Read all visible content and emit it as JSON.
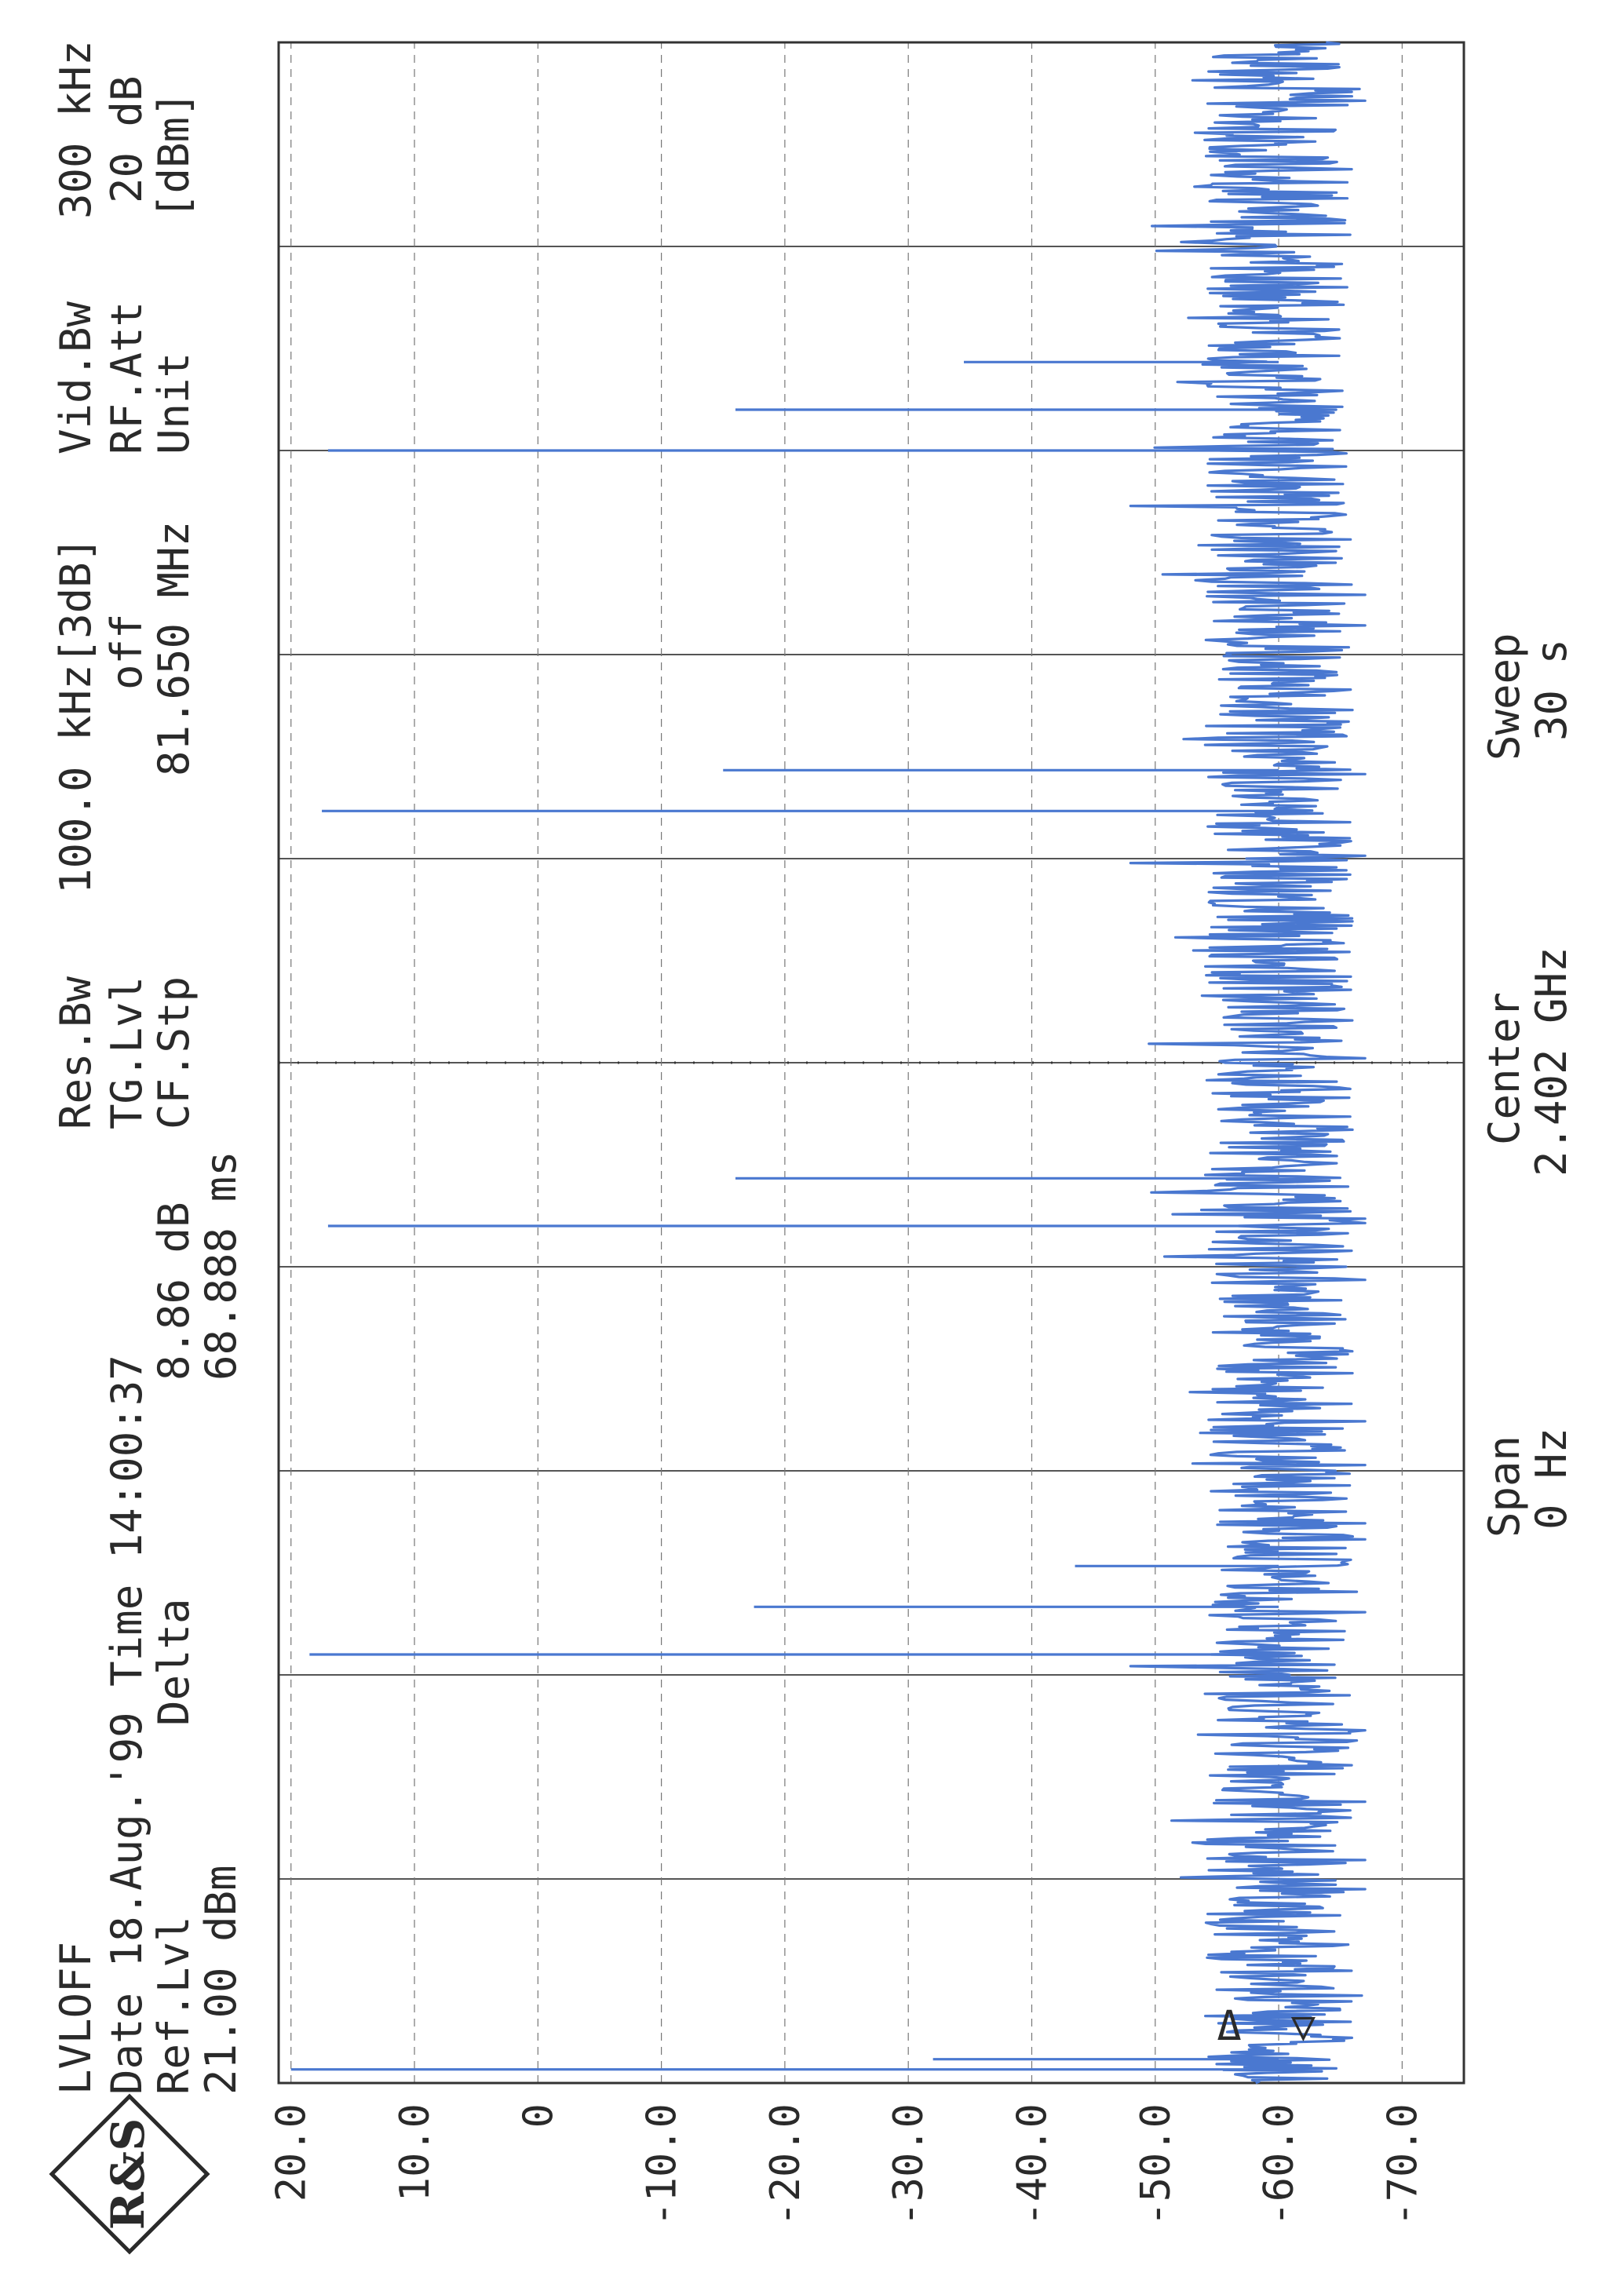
{
  "header": {
    "col1": [
      "LVLOFF",
      "Date 18.Aug.'99  Time 14:00:37",
      "Ref.Lvl",
      "21.00 dBm"
    ],
    "col2": [
      "Delta",
      "8.86 dB",
      "68.888 ms"
    ],
    "col3": [
      "Res.Bw",
      "TG.Lvl",
      "CF.Stp"
    ],
    "col4": [
      "100.0 kHz[3dB]",
      "off",
      "81.650 MHz"
    ],
    "col5": [
      "Vid.Bw",
      "RF.Att",
      "Unit"
    ],
    "col6": [
      "300 kHz",
      "20 dB",
      "[dBm]"
    ]
  },
  "footer": {
    "span_label": "Span",
    "span_value": "0 Hz",
    "center_label": "Center",
    "center_value": "2.402 GHz",
    "sweep_label": "Sweep",
    "sweep_value": "30 s"
  },
  "logo": {
    "text": "R&S"
  },
  "colors": {
    "trace": "#4a78d0",
    "grid": "#555555",
    "text": "#2a2a2a"
  },
  "chart_data": {
    "type": "line",
    "title": "",
    "xlabel": "",
    "ylabel": "",
    "ylim": [
      -75,
      21
    ],
    "xlim": [
      0,
      30
    ],
    "x_unit": "s",
    "y_unit": "dBm",
    "y_ticks": [
      "20.0",
      "10.0",
      "0",
      "-10.0",
      "-20.0",
      "-30.0",
      "-40.0",
      "-50.0",
      "-60.0",
      "-70.0"
    ],
    "y_tick_values": [
      20,
      10,
      0,
      -10,
      -20,
      -30,
      -40,
      -50,
      -60,
      -70
    ],
    "grid": true,
    "marker_labels": [
      "Δ",
      "▽"
    ],
    "series": [
      {
        "noise_floor_dbm": -60,
        "spikes": [
          {
            "t": 0.2,
            "dbm": 20.0
          },
          {
            "t": 0.35,
            "dbm": -32.0
          },
          {
            "t": 6.3,
            "dbm": 18.5
          },
          {
            "t": 7.0,
            "dbm": -17.5
          },
          {
            "t": 7.6,
            "dbm": -43.5
          },
          {
            "t": 12.6,
            "dbm": 17.0
          },
          {
            "t": 13.3,
            "dbm": -16.0
          },
          {
            "t": 18.7,
            "dbm": 17.5
          },
          {
            "t": 19.3,
            "dbm": -15.0
          },
          {
            "t": 24.0,
            "dbm": 17.0
          },
          {
            "t": 24.6,
            "dbm": -16.0
          },
          {
            "t": 25.3,
            "dbm": -34.5
          }
        ]
      }
    ]
  }
}
